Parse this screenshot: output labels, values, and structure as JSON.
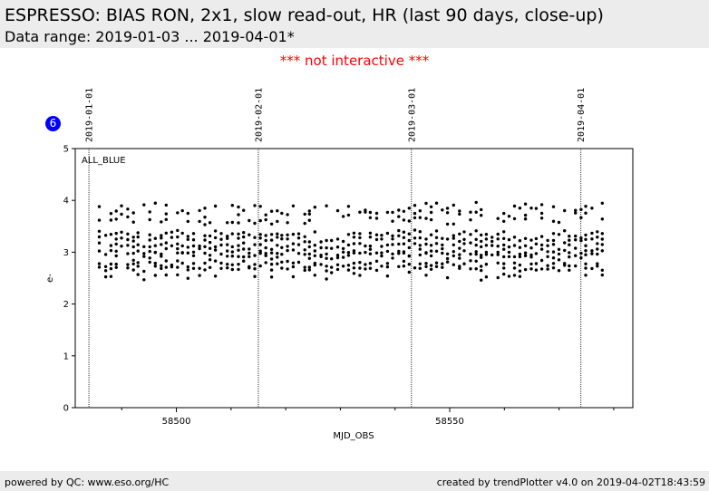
{
  "header": {
    "title": "ESPRESSO: BIAS RON, 2x1, slow read-out, HR (last 90 days, close-up)",
    "subtitle": "Data range: 2019-01-03 ... 2019-04-01*"
  },
  "notice": "*** not interactive ***",
  "badge": "6",
  "footer": {
    "left": "powered by QC: www.eso.org/HC",
    "right": "created by trendPlotter v4.0 on 2019-04-02T18:43:59"
  },
  "chart_data": {
    "type": "scatter",
    "panel_label": "ALL_BLUE",
    "xlabel": "MJD_OBS",
    "ylabel": "e-",
    "xlim": [
      58481.5,
      58583.5
    ],
    "ylim": [
      0,
      5
    ],
    "x_ticks": [
      58500,
      58550
    ],
    "y_ticks": [
      0,
      1,
      2,
      3,
      4,
      5
    ],
    "date_markers": [
      {
        "label": "2019-01-01",
        "x": 58484
      },
      {
        "label": "2019-02-01",
        "x": 58515
      },
      {
        "label": "2019-03-01",
        "x": 58543
      },
      {
        "label": "2019-04-01",
        "x": 58574
      }
    ],
    "x_start": 58486,
    "x_end": 58578,
    "nights": 92,
    "levels": [
      {
        "y": 3.88,
        "jitter": 0.06,
        "fill": 0.45
      },
      {
        "y": 3.75,
        "jitter": 0.05,
        "fill": 0.55
      },
      {
        "y": 3.6,
        "jitter": 0.05,
        "fill": 0.6
      },
      {
        "y": 3.35,
        "jitter": 0.04,
        "fill": 0.8
      },
      {
        "y": 3.25,
        "jitter": 0.03,
        "fill": 0.9
      },
      {
        "y": 3.12,
        "jitter": 0.04,
        "fill": 0.9
      },
      {
        "y": 3.0,
        "jitter": 0.04,
        "fill": 0.9
      },
      {
        "y": 2.92,
        "jitter": 0.04,
        "fill": 0.7
      },
      {
        "y": 2.78,
        "jitter": 0.04,
        "fill": 0.85
      },
      {
        "y": 2.68,
        "jitter": 0.04,
        "fill": 0.75
      },
      {
        "y": 2.52,
        "jitter": 0.04,
        "fill": 0.45
      }
    ],
    "point_color": "#000000",
    "grid": false
  }
}
